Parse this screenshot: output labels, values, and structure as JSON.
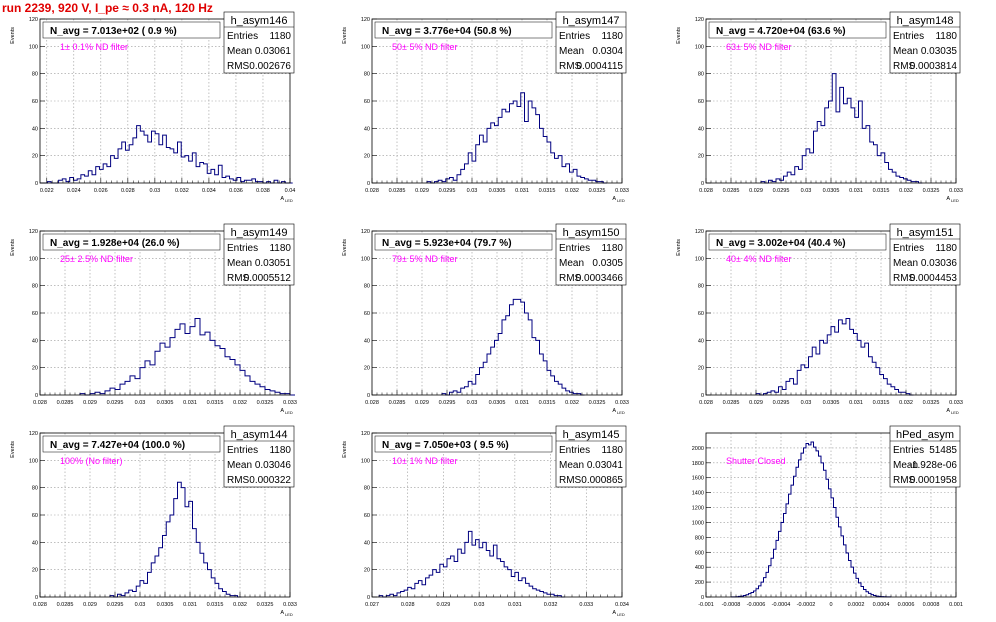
{
  "page": {
    "title": "run 2239,   920 V, I_pe ≈ 0.3 nA, 120 Hz"
  },
  "colors": {
    "title": "#e00000",
    "annotation": "#ff00ff",
    "histogram": "#000080",
    "grid": "#999999",
    "frame": "#000000"
  },
  "chart_data": [
    {
      "type": "histogram",
      "name": "h_asym146",
      "title": "N_avg = 7.013e+02 ( 0.9 %)",
      "annotation": "1± 0.1% ND filter",
      "stats": {
        "entries_label": "Entries",
        "entries": "1180",
        "mean_label": "Mean",
        "mean": "0.03061",
        "rms_label": "RMS",
        "rms": "0.002676"
      },
      "ylabel": "Events",
      "xlabel": "A",
      "xlim": [
        0.0215,
        0.04
      ],
      "ylim": [
        0,
        120
      ],
      "xticks": [
        "0.022",
        "0.024",
        "0.026",
        "0.028",
        "0.03",
        "0.032",
        "0.034",
        "0.036",
        "0.038",
        "0.04"
      ],
      "xtick_values": [
        0.022,
        0.024,
        0.026,
        0.028,
        0.03,
        0.032,
        0.034,
        0.036,
        0.038,
        0.04
      ],
      "yticks": [
        "0",
        "20",
        "40",
        "60",
        "80",
        "100",
        "120"
      ],
      "ytick_values": [
        0,
        20,
        40,
        60,
        80,
        100,
        120
      ],
      "bins": {
        "start": 0.0215,
        "width": 0.000275,
        "counts": [
          0,
          0,
          1,
          0,
          0,
          2,
          3,
          1,
          4,
          2,
          3,
          6,
          5,
          9,
          6,
          12,
          10,
          14,
          12,
          20,
          18,
          25,
          30,
          24,
          28,
          33,
          42,
          38,
          35,
          30,
          38,
          36,
          28,
          35,
          26,
          25,
          22,
          30,
          19,
          20,
          16,
          22,
          12,
          15,
          14,
          7,
          10,
          6,
          13,
          4,
          5,
          3,
          2,
          4,
          1,
          2,
          2,
          3,
          1,
          1,
          0,
          1,
          0,
          2,
          0,
          1,
          0,
          0
        ]
      }
    },
    {
      "type": "histogram",
      "name": "h_asym147",
      "title": "N_avg = 3.776e+04 (50.8 %)",
      "annotation": "50± 5% ND filter",
      "stats": {
        "entries_label": "Entries",
        "entries": "1180",
        "mean_label": "Mean",
        "mean": "0.0304",
        "rms_label": "RMS",
        "rms": "0.0004115"
      },
      "ylabel": "Events",
      "xlabel": "A",
      "xlim": [
        0.028,
        0.033
      ],
      "ylim": [
        0,
        120
      ],
      "xticks": [
        "0.028",
        "0.0285",
        "0.029",
        "0.0295",
        "0.03",
        "0.0305",
        "0.031",
        "0.0315",
        "0.032",
        "0.0325",
        "0.033"
      ],
      "xtick_values": [
        0.028,
        0.0285,
        0.029,
        0.0295,
        0.03,
        0.0305,
        0.031,
        0.0315,
        0.032,
        0.0325,
        0.033
      ],
      "yticks": [
        "0",
        "20",
        "40",
        "60",
        "80",
        "100",
        "120"
      ],
      "ytick_values": [
        0,
        20,
        40,
        60,
        80,
        100,
        120
      ],
      "bins": {
        "start": 0.0291,
        "width": 7.5e-05,
        "counts": [
          1,
          0,
          1,
          2,
          1,
          3,
          4,
          2,
          6,
          10,
          14,
          22,
          16,
          28,
          35,
          30,
          40,
          44,
          42,
          48,
          54,
          52,
          58,
          60,
          56,
          66,
          45,
          60,
          55,
          50,
          40,
          34,
          30,
          22,
          18,
          20,
          12,
          14,
          8,
          10,
          5,
          4,
          3,
          2,
          2,
          1,
          1,
          0
        ]
      }
    },
    {
      "type": "histogram",
      "name": "h_asym148",
      "title": "N_avg = 4.720e+04 (63.6 %)",
      "annotation": "63± 5% ND filter",
      "stats": {
        "entries_label": "Entries",
        "entries": "1180",
        "mean_label": "Mean",
        "mean": "0.03035",
        "rms_label": "RMS",
        "rms": "0.0003814"
      },
      "ylabel": "Events",
      "xlabel": "A",
      "xlim": [
        0.028,
        0.033
      ],
      "ylim": [
        0,
        120
      ],
      "xticks": [
        "0.028",
        "0.0285",
        "0.029",
        "0.0295",
        "0.03",
        "0.0305",
        "0.031",
        "0.0315",
        "0.032",
        "0.0325",
        "0.033"
      ],
      "xtick_values": [
        0.028,
        0.0285,
        0.029,
        0.0295,
        0.03,
        0.0305,
        0.031,
        0.0315,
        0.032,
        0.0325,
        0.033
      ],
      "yticks": [
        "0",
        "20",
        "40",
        "60",
        "80",
        "100",
        "120"
      ],
      "ytick_values": [
        0,
        20,
        40,
        60,
        80,
        100,
        120
      ],
      "bins": {
        "start": 0.0291,
        "width": 7.5e-05,
        "counts": [
          1,
          0,
          2,
          1,
          3,
          2,
          5,
          8,
          6,
          12,
          10,
          20,
          25,
          22,
          38,
          45,
          42,
          55,
          60,
          80,
          52,
          70,
          58,
          62,
          55,
          48,
          60,
          40,
          42,
          30,
          28,
          20,
          22,
          15,
          10,
          8,
          5,
          4,
          3,
          2,
          1,
          1,
          0
        ]
      }
    },
    {
      "type": "histogram",
      "name": "h_asym149",
      "title": "N_avg = 1.928e+04 (26.0 %)",
      "annotation": "25± 2.5% ND filter",
      "stats": {
        "entries_label": "Entries",
        "entries": "1180",
        "mean_label": "Mean",
        "mean": "0.03051",
        "rms_label": "RMS",
        "rms": "0.0005512"
      },
      "ylabel": "Events",
      "xlabel": "A",
      "xlim": [
        0.028,
        0.033
      ],
      "ylim": [
        0,
        120
      ],
      "xticks": [
        "0.028",
        "0.0285",
        "0.029",
        "0.0295",
        "0.03",
        "0.0305",
        "0.031",
        "0.0315",
        "0.032",
        "0.0325",
        "0.033"
      ],
      "xtick_values": [
        0.028,
        0.0285,
        0.029,
        0.0295,
        0.03,
        0.0305,
        0.031,
        0.0315,
        0.032,
        0.0325,
        0.033
      ],
      "yticks": [
        "0",
        "20",
        "40",
        "60",
        "80",
        "100",
        "120"
      ],
      "ytick_values": [
        0,
        20,
        40,
        60,
        80,
        100,
        120
      ],
      "bins": {
        "start": 0.0288,
        "width": 0.0001,
        "counts": [
          1,
          0,
          1,
          2,
          1,
          3,
          5,
          4,
          8,
          10,
          14,
          12,
          20,
          25,
          22,
          32,
          38,
          35,
          42,
          48,
          52,
          45,
          50,
          56,
          44,
          46,
          40,
          36,
          34,
          28,
          26,
          22,
          18,
          14,
          10,
          8,
          6,
          4,
          3,
          2,
          1,
          1,
          0
        ]
      }
    },
    {
      "type": "histogram",
      "name": "h_asym150",
      "title": "N_avg = 5.923e+04 (79.7 %)",
      "annotation": "79± 5% ND filter",
      "stats": {
        "entries_label": "Entries",
        "entries": "1180",
        "mean_label": "Mean",
        "mean": "0.0305",
        "rms_label": "RMS",
        "rms": "0.0003466"
      },
      "ylabel": "Events",
      "xlabel": "A",
      "xlim": [
        0.028,
        0.033
      ],
      "ylim": [
        0,
        120
      ],
      "xticks": [
        "0.028",
        "0.0285",
        "0.029",
        "0.0295",
        "0.03",
        "0.0305",
        "0.031",
        "0.0315",
        "0.032",
        "0.0325",
        "0.033"
      ],
      "xtick_values": [
        0.028,
        0.0285,
        0.029,
        0.0295,
        0.03,
        0.0305,
        0.031,
        0.0315,
        0.032,
        0.0325,
        0.033
      ],
      "yticks": [
        "0",
        "20",
        "40",
        "60",
        "80",
        "100",
        "120"
      ],
      "ytick_values": [
        0,
        20,
        40,
        60,
        80,
        100,
        120
      ],
      "bins": {
        "start": 0.0294,
        "width": 7.5e-05,
        "counts": [
          1,
          0,
          2,
          3,
          2,
          5,
          6,
          10,
          8,
          15,
          20,
          24,
          30,
          35,
          40,
          45,
          55,
          58,
          66,
          70,
          70,
          68,
          60,
          55,
          42,
          40,
          30,
          25,
          18,
          14,
          10,
          8,
          5,
          3,
          2,
          1,
          1,
          0
        ]
      }
    },
    {
      "type": "histogram",
      "name": "h_asym151",
      "title": "N_avg = 3.002e+04 (40.4 %)",
      "annotation": "40± 4% ND filter",
      "stats": {
        "entries_label": "Entries",
        "entries": "1180",
        "mean_label": "Mean",
        "mean": "0.03036",
        "rms_label": "RMS",
        "rms": "0.0004453"
      },
      "ylabel": "Events",
      "xlabel": "A",
      "xlim": [
        0.028,
        0.033
      ],
      "ylim": [
        0,
        120
      ],
      "xticks": [
        "0.028",
        "0.0285",
        "0.029",
        "0.0295",
        "0.03",
        "0.0305",
        "0.031",
        "0.0315",
        "0.032",
        "0.0325",
        "0.033"
      ],
      "xtick_values": [
        0.028,
        0.0285,
        0.029,
        0.0295,
        0.03,
        0.0305,
        0.031,
        0.0315,
        0.032,
        0.0325,
        0.033
      ],
      "yticks": [
        "0",
        "20",
        "40",
        "60",
        "80",
        "100",
        "120"
      ],
      "ytick_values": [
        0,
        20,
        40,
        60,
        80,
        100,
        120
      ],
      "bins": {
        "start": 0.029,
        "width": 7.5e-05,
        "counts": [
          1,
          0,
          1,
          2,
          3,
          2,
          6,
          4,
          10,
          12,
          8,
          18,
          22,
          20,
          28,
          35,
          30,
          40,
          38,
          44,
          50,
          46,
          55,
          52,
          56,
          48,
          45,
          40,
          35,
          38,
          28,
          24,
          20,
          15,
          12,
          8,
          6,
          4,
          2,
          2,
          1,
          0
        ]
      }
    },
    {
      "type": "histogram",
      "name": "h_asym144",
      "title": "N_avg = 7.427e+04 (100.0 %)",
      "annotation": "100% (No filter)",
      "stats": {
        "entries_label": "Entries",
        "entries": "1180",
        "mean_label": "Mean",
        "mean": "0.03046",
        "rms_label": "RMS",
        "rms": "0.000322"
      },
      "ylabel": "Events",
      "xlabel": "A",
      "xlim": [
        0.028,
        0.033
      ],
      "ylim": [
        0,
        120
      ],
      "xticks": [
        "0.028",
        "0.0285",
        "0.029",
        "0.0295",
        "0.03",
        "0.0305",
        "0.031",
        "0.0315",
        "0.032",
        "0.0325",
        "0.033"
      ],
      "xtick_values": [
        0.028,
        0.0285,
        0.029,
        0.0295,
        0.03,
        0.0305,
        0.031,
        0.0315,
        0.032,
        0.0325,
        0.033
      ],
      "yticks": [
        "0",
        "20",
        "40",
        "60",
        "80",
        "100",
        "120"
      ],
      "ytick_values": [
        0,
        20,
        40,
        60,
        80,
        100,
        120
      ],
      "bins": {
        "start": 0.0294,
        "width": 7.5e-05,
        "counts": [
          1,
          0,
          2,
          1,
          3,
          5,
          4,
          8,
          12,
          10,
          18,
          25,
          30,
          36,
          45,
          55,
          60,
          72,
          84,
          80,
          66,
          70,
          50,
          40,
          32,
          25,
          20,
          14,
          10,
          6,
          4,
          2,
          1,
          1,
          0
        ]
      }
    },
    {
      "type": "histogram",
      "name": "h_asym145",
      "title": "N_avg = 7.050e+03 ( 9.5 %)",
      "annotation": "10± 1% ND filter",
      "stats": {
        "entries_label": "Entries",
        "entries": "1180",
        "mean_label": "Mean",
        "mean": "0.03041",
        "rms_label": "RMS",
        "rms": "0.000865"
      },
      "ylabel": "Events",
      "xlabel": "A",
      "xlim": [
        0.027,
        0.034
      ],
      "ylim": [
        0,
        120
      ],
      "xticks": [
        "0.027",
        "0.028",
        "0.029",
        "0.03",
        "0.031",
        "0.032",
        "0.033",
        "0.034"
      ],
      "xtick_values": [
        0.027,
        0.028,
        0.029,
        0.03,
        0.031,
        0.032,
        0.033,
        0.034
      ],
      "yticks": [
        "0",
        "20",
        "40",
        "60",
        "80",
        "100",
        "120"
      ],
      "ytick_values": [
        0,
        20,
        40,
        60,
        80,
        100,
        120
      ],
      "bins": {
        "start": 0.0272,
        "width": 0.0001,
        "counts": [
          1,
          0,
          1,
          2,
          1,
          3,
          4,
          5,
          7,
          6,
          10,
          12,
          9,
          14,
          16,
          20,
          18,
          24,
          22,
          28,
          30,
          26,
          35,
          32,
          40,
          48,
          38,
          42,
          36,
          40,
          34,
          30,
          38,
          28,
          26,
          22,
          20,
          15,
          18,
          12,
          14,
          10,
          8,
          6,
          5,
          4,
          3,
          2,
          2,
          1,
          1,
          0
        ]
      }
    },
    {
      "type": "histogram",
      "name": "hPed_asym",
      "title": "",
      "annotation": "Shutter Closed",
      "stats": {
        "entries_label": "Entries",
        "entries": "51485",
        "mean_label": "Mean",
        "mean": "-1.928e-06",
        "rms_label": "RMS",
        "rms": "0.0001958"
      },
      "ylabel": "",
      "xlabel": "",
      "xlim": [
        -0.001,
        0.001
      ],
      "ylim": [
        0,
        2200
      ],
      "xticks": [
        "-0.001",
        "-0.0008",
        "-0.0006",
        "-0.0004",
        "-0.0002",
        "0",
        "0.0002",
        "0.0004",
        "0.0006",
        "0.0008",
        "0.001"
      ],
      "xtick_values": [
        -0.001,
        -0.0008,
        -0.0006,
        -0.0004,
        -0.0002,
        0,
        0.0002,
        0.0004,
        0.0006,
        0.0008,
        0.001
      ],
      "yticks": [
        "0",
        "200",
        "400",
        "600",
        "800",
        "1000",
        "1200",
        "1400",
        "1600",
        "1800",
        "2000"
      ],
      "ytick_values": [
        0,
        200,
        400,
        600,
        800,
        1000,
        1200,
        1400,
        1600,
        1800,
        2000
      ],
      "bins": {
        "start": -0.0008,
        "width": 2e-05,
        "counts": [
          1,
          2,
          4,
          8,
          12,
          20,
          30,
          45,
          60,
          80,
          110,
          150,
          200,
          260,
          330,
          420,
          520,
          640,
          760,
          880,
          1000,
          1120,
          1250,
          1380,
          1500,
          1620,
          1740,
          1840,
          1930,
          2000,
          2060,
          2040,
          2080,
          2010,
          1960,
          1890,
          1800,
          1700,
          1580,
          1450,
          1330,
          1200,
          1070,
          940,
          820,
          700,
          590,
          490,
          400,
          320,
          250,
          190,
          140,
          100,
          70,
          48,
          32,
          20,
          12,
          8,
          5,
          3,
          2,
          1
        ]
      }
    }
  ]
}
